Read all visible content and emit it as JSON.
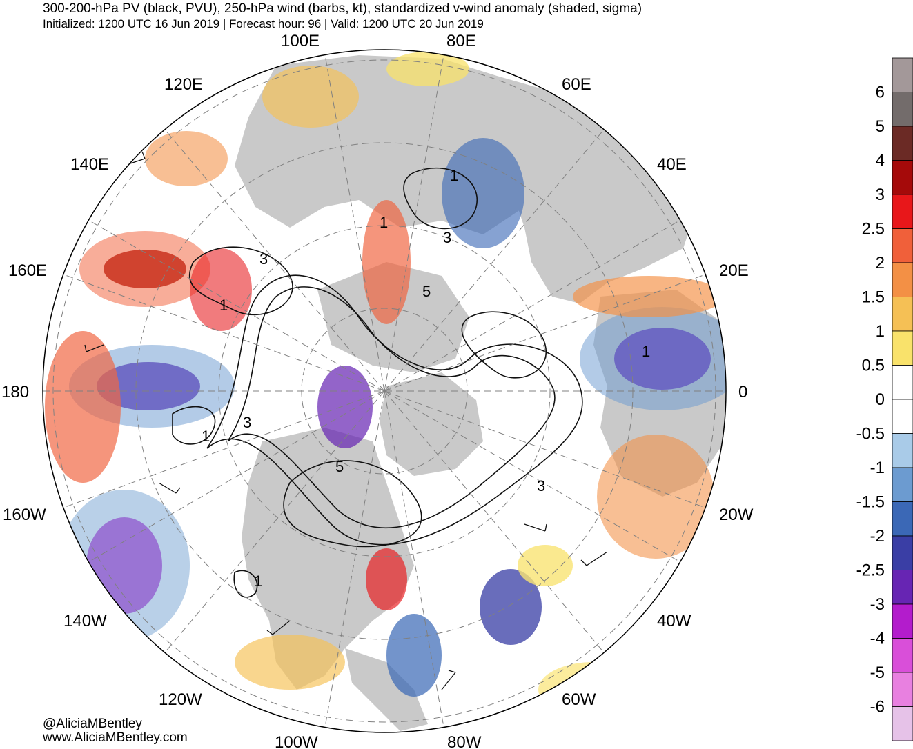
{
  "header": {
    "title": "300-200-hPa PV (black, PVU), 250-hPa wind (barbs, kt), standardized v-wind anomaly (shaded, sigma)",
    "subtitle": "Initialized: 1200 UTC 16 Jun 2019 | Forecast hour: 96 | Valid: 1200 UTC 20 Jun 2019"
  },
  "map": {
    "projection": "north-polar-stereographic",
    "longitude_labels": [
      "100E",
      "80E",
      "120E",
      "60E",
      "140E",
      "40E",
      "160E",
      "20E",
      "180",
      "0",
      "160W",
      "20W",
      "140W",
      "40W",
      "120W",
      "60W",
      "100W",
      "80W"
    ],
    "pv_contour_labels": [
      "1",
      "3",
      "5",
      "1",
      "3",
      "1",
      "5",
      "1",
      "3",
      "1",
      "3",
      "1"
    ]
  },
  "colorbar": {
    "labels": [
      "6",
      "5",
      "4",
      "3",
      "2.5",
      "2",
      "1.5",
      "1",
      "0.5",
      "0",
      "-0.5",
      "-1",
      "-1.5",
      "-2",
      "-2.5",
      "-3",
      "-4",
      "-5",
      "-6"
    ],
    "colors": [
      "#a39899",
      "#736c6b",
      "#6b2a25",
      "#a50a0a",
      "#e8171a",
      "#f0603a",
      "#f39045",
      "#f5c055",
      "#f9e26b",
      "#ffffff",
      "#ffffff",
      "#a9cbe8",
      "#6c9bd0",
      "#3b68b6",
      "#3a3ea5",
      "#6725b3",
      "#b31ccc",
      "#d94fd9",
      "#e880e0",
      "#e6c2e8"
    ],
    "colorbar_name": "standardized v-wind anomaly (sigma)"
  },
  "credits": {
    "handle": "@AliciaMBentley",
    "website": "www.AliciaMBentley.com"
  },
  "palette": {
    "land": "#c9c9c9",
    "ocean": "#ffffff"
  }
}
